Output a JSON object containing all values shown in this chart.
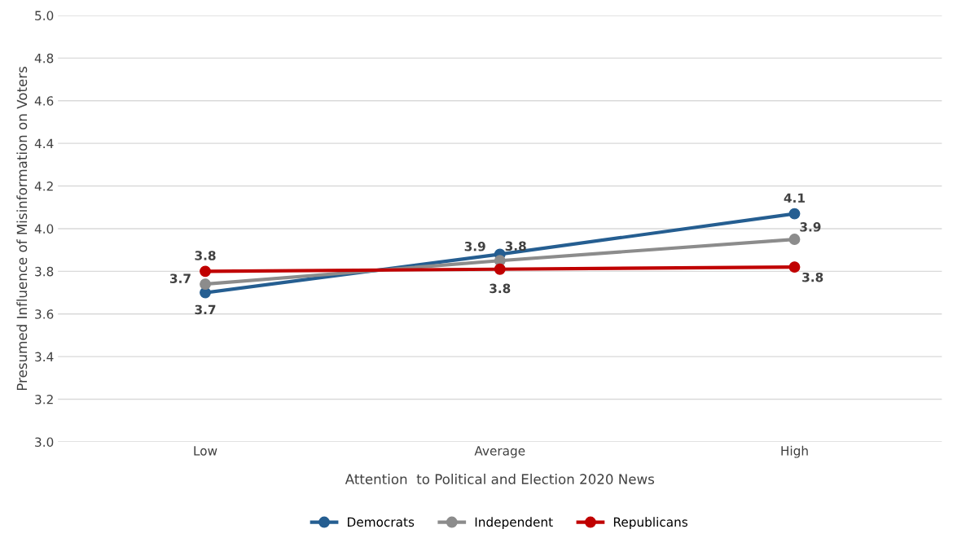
{
  "chart_data": {
    "type": "line",
    "xlabel": "Attention  to Political and Election 2020 News",
    "ylabel": "Presumed Influence of Misinformation on Voters",
    "categories": [
      "Low",
      "Average",
      "High"
    ],
    "series": [
      {
        "name": "Democrats",
        "color": "#255e91",
        "values": [
          3.7,
          3.88,
          4.07
        ],
        "value_labels": [
          "3.7",
          "3.9",
          "4.1"
        ]
      },
      {
        "name": "Independent",
        "color": "#8c8c8c",
        "values": [
          3.74,
          3.85,
          3.95
        ],
        "value_labels": [
          "3.7",
          "3.8",
          "3.9"
        ]
      },
      {
        "name": "Republicans",
        "color": "#c00000",
        "values": [
          3.8,
          3.81,
          3.82
        ],
        "value_labels": [
          "3.8",
          "3.8",
          "3.8"
        ]
      }
    ],
    "ylim": [
      3.0,
      5.0
    ],
    "yticks": [
      {
        "value": 3.0,
        "label": "3.0"
      },
      {
        "value": 3.2,
        "label": "3.2"
      },
      {
        "value": 3.4,
        "label": "3.4"
      },
      {
        "value": 3.6,
        "label": "3.6"
      },
      {
        "value": 3.8,
        "label": "3.8"
      },
      {
        "value": 4.0,
        "label": "4.0"
      },
      {
        "value": 4.2,
        "label": "4.2"
      },
      {
        "value": 4.4,
        "label": "4.4"
      },
      {
        "value": 4.6,
        "label": "4.6"
      },
      {
        "value": 4.8,
        "label": "4.8"
      },
      {
        "value": 5.0,
        "label": "5.0"
      }
    ],
    "grid": "y",
    "legend": "bottom",
    "marker": "circle",
    "line_style": "solid"
  }
}
